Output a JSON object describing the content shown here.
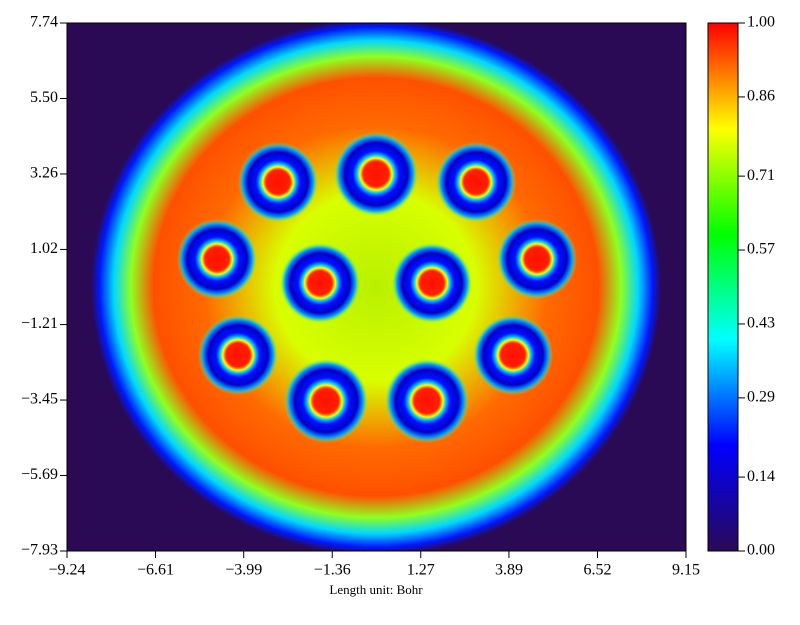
{
  "chart_data": {
    "type": "heatmap",
    "xlabel": "Length unit: Bohr",
    "xlim": [
      -9.24,
      9.15
    ],
    "ylim": [
      -7.93,
      7.74
    ],
    "xticks": [
      {
        "value": -9.24,
        "label": "−9.24"
      },
      {
        "value": -6.61,
        "label": "−6.61"
      },
      {
        "value": -3.99,
        "label": "−3.99"
      },
      {
        "value": -1.36,
        "label": "−1.36"
      },
      1.27,
      3.89,
      6.52,
      9.15
    ],
    "yticks": [
      {
        "value": -7.93,
        "label": "−7.93"
      },
      {
        "value": -5.69,
        "label": "−5.69"
      },
      {
        "value": -3.45,
        "label": "−3.45"
      },
      {
        "value": -1.21,
        "label": "−1.21"
      },
      1.02,
      3.26,
      {
        "value": 5.5,
        "label": "5.50"
      },
      7.74
    ],
    "colorbar": {
      "lim": [
        0,
        1
      ],
      "ticks": [
        {
          "value": 0,
          "label": "0.00"
        },
        0.14,
        0.29,
        0.43,
        0.57,
        0.71,
        0.86,
        {
          "value": 1,
          "label": "1.00"
        }
      ],
      "colors": [
        "#2a0a55",
        "#0000ff",
        "#00ffff",
        "#00ff00",
        "#ffff00",
        "#ff0000"
      ]
    }
  }
}
